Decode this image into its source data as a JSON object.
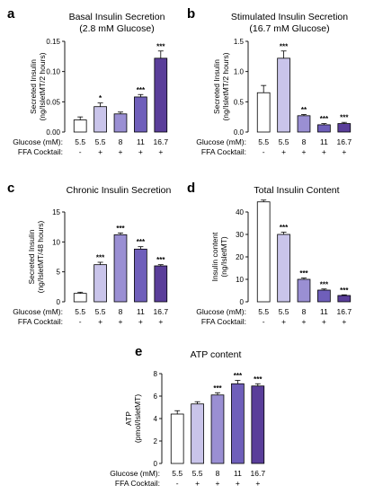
{
  "colors": [
    "#ffffff",
    "#c9c4ea",
    "#9a8fd3",
    "#6f5fba",
    "#5a3e9a"
  ],
  "panels": [
    {
      "letter": "a",
      "title_lines": [
        "Basal Insulin Secretion",
        "(2.8 mM Glucose)"
      ],
      "ylabel_lines": [
        "Secreted Insulin",
        "(ng/IsletMT/2 hours)"
      ]
    },
    {
      "letter": "b",
      "title_lines": [
        "Stimulated Insulin Secretion",
        "(16.7 mM Glucose)"
      ],
      "ylabel_lines": [
        "Secreted Insulin",
        "(ng/IsletMT/2 hours)"
      ]
    },
    {
      "letter": "c",
      "title_lines": [
        "Chronic Insulin Secretion"
      ],
      "ylabel_lines": [
        "Secreted Insulin",
        "(ng/IsletMT/48 hours)"
      ]
    },
    {
      "letter": "d",
      "title_lines": [
        "Total Insulin Content"
      ],
      "ylabel_lines": [
        "Insulin content",
        "(ng/IsletMT)"
      ]
    },
    {
      "letter": "e",
      "title_lines": [
        "ATP content"
      ],
      "ylabel_lines": [
        "ATP",
        "(pmol/IsletMT)"
      ]
    }
  ],
  "row_labels": {
    "glucose": "Glucose (mM):",
    "ffa": "FFA Cocktail:"
  },
  "chart_data": [
    {
      "type": "bar",
      "categories": [
        "5.5",
        "5.5",
        "8",
        "11",
        "16.7"
      ],
      "ffa": [
        "-",
        "+",
        "+",
        "+",
        "+"
      ],
      "values": [
        0.02,
        0.042,
        0.03,
        0.058,
        0.122
      ],
      "errors": [
        0.005,
        0.006,
        0.003,
        0.004,
        0.012
      ],
      "significance": [
        "",
        "*",
        "",
        "***",
        "***"
      ],
      "ylim": [
        0,
        0.15
      ],
      "yticks": [
        0.0,
        0.05,
        0.1,
        0.15
      ],
      "ytick_labels": [
        "0.00",
        "0.05",
        "0.10",
        "0.15"
      ]
    },
    {
      "type": "bar",
      "categories": [
        "5.5",
        "5.5",
        "8",
        "11",
        "16.7"
      ],
      "ffa": [
        "-",
        "+",
        "+",
        "+",
        "+"
      ],
      "values": [
        0.65,
        1.22,
        0.27,
        0.12,
        0.14
      ],
      "errors": [
        0.12,
        0.12,
        0.02,
        0.02,
        0.02
      ],
      "significance": [
        "",
        "***",
        "**",
        "***",
        "***"
      ],
      "ylim": [
        0,
        1.5
      ],
      "yticks": [
        0.0,
        0.5,
        1.0,
        1.5
      ],
      "ytick_labels": [
        "0.0",
        "0.5",
        "1.0",
        "1.5"
      ]
    },
    {
      "type": "bar",
      "categories": [
        "5.5",
        "5.5",
        "8",
        "11",
        "16.7"
      ],
      "ffa": [
        "-",
        "+",
        "+",
        "+",
        "+"
      ],
      "values": [
        1.4,
        6.2,
        11.2,
        8.8,
        6.0
      ],
      "errors": [
        0.2,
        0.4,
        0.3,
        0.4,
        0.2
      ],
      "significance": [
        "",
        "***",
        "***",
        "***",
        "***"
      ],
      "ylim": [
        0,
        15
      ],
      "yticks": [
        0,
        5,
        10,
        15
      ],
      "ytick_labels": [
        "0",
        "5",
        "10",
        "15"
      ]
    },
    {
      "type": "bar",
      "categories": [
        "5.5",
        "5.5",
        "8",
        "11",
        "16.7"
      ],
      "ffa": [
        "-",
        "+",
        "+",
        "+",
        "+"
      ],
      "values": [
        44.5,
        30.0,
        10.0,
        5.2,
        2.8
      ],
      "errors": [
        0.8,
        1.0,
        0.6,
        0.5,
        0.3
      ],
      "significance": [
        "",
        "***",
        "***",
        "***",
        "***"
      ],
      "ylim": [
        0,
        40
      ],
      "yticks": [
        0,
        10,
        20,
        30,
        40
      ],
      "ytick_labels": [
        "0",
        "10",
        "20",
        "30",
        "40"
      ]
    },
    {
      "type": "bar",
      "categories": [
        "5.5",
        "5.5",
        "8",
        "11",
        "16.7"
      ],
      "ffa": [
        "-",
        "+",
        "+",
        "+",
        "+"
      ],
      "values": [
        4.4,
        5.3,
        6.1,
        7.1,
        6.9
      ],
      "errors": [
        0.3,
        0.2,
        0.2,
        0.3,
        0.2
      ],
      "significance": [
        "",
        "",
        "***",
        "***",
        "***"
      ],
      "ylim": [
        0,
        8
      ],
      "yticks": [
        0,
        2,
        4,
        6,
        8
      ],
      "ytick_labels": [
        "0",
        "2",
        "4",
        "6",
        "8"
      ]
    }
  ]
}
